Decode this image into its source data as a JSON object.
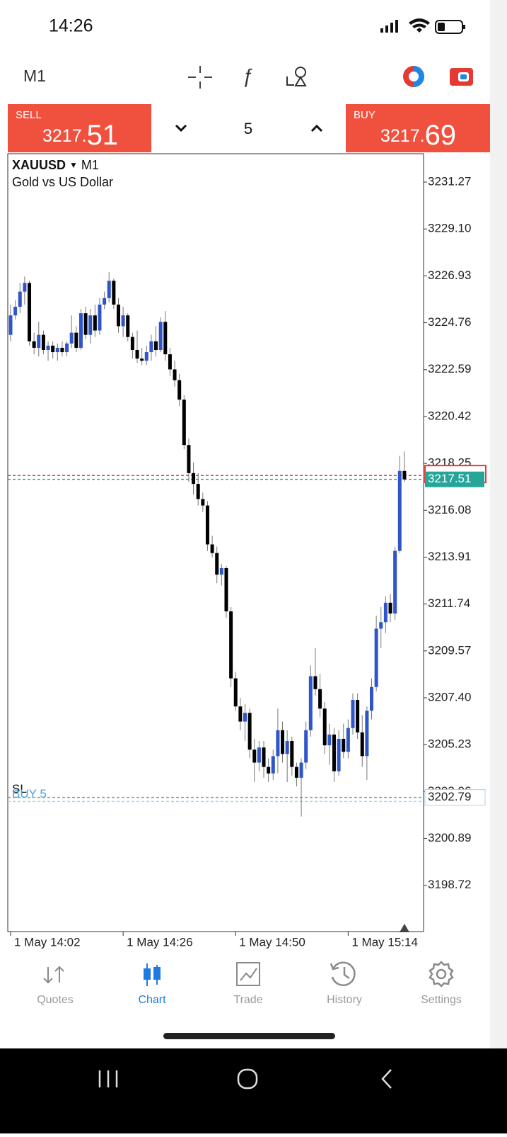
{
  "status_bar": {
    "time": "14:26"
  },
  "toolbar": {
    "timeframe": "M1"
  },
  "trade_panel": {
    "sell": {
      "label": "SELL",
      "price_main": "3217.",
      "price_pips": "51"
    },
    "volume": "5",
    "buy": {
      "label": "BUY",
      "price_main": "3217.",
      "price_pips": "69"
    }
  },
  "chart_data": {
    "type": "candlestick",
    "symbol": "XAUUSD",
    "timeframe": "M1",
    "subtitle": "Gold vs US Dollar",
    "up_color": "#2f55c8",
    "down_color": "#000000",
    "open": [
      3224.2,
      3225.1,
      3225.5,
      3226.2,
      3226.6,
      3223.9,
      3223.6,
      3224.2,
      3223.5,
      3223.7,
      3223.4,
      3223.6,
      3223.4,
      3223.8,
      3224.3,
      3223.6,
      3225.2,
      3224.2,
      3225.1,
      3224.4,
      3225.6,
      3225.9,
      3226.7,
      3225.6,
      3224.6,
      3225.1,
      3224.1,
      3223.5,
      3223.1,
      3223.0,
      3223.4,
      3223.9,
      3223.5,
      3224.8,
      3223.3,
      3222.6,
      3222.1,
      3221.2,
      3219.1,
      3217.8,
      3217.3,
      3216.6,
      3216.3,
      3214.5,
      3214.1,
      3213.1,
      3213.4,
      3211.4,
      3208.3,
      3207.0,
      3206.3,
      3206.7,
      3205.0,
      3204.4,
      3205.1,
      3204.2,
      3203.9,
      3204.7,
      3205.9,
      3204.8,
      3205.4,
      3204.2,
      3203.7,
      3204.4,
      3205.9,
      3208.4,
      3207.8,
      3206.9,
      3205.2,
      3205.7,
      3204.0,
      3205.5,
      3204.9,
      3206.0,
      3207.3,
      3205.8,
      3204.7,
      3206.8,
      3207.9,
      3210.6,
      3210.9,
      3211.8,
      3211.3,
      3214.2,
      3217.9
    ],
    "high": [
      3225.6,
      3225.8,
      3226.6,
      3226.9,
      3226.7,
      3224.3,
      3224.8,
      3224.4,
      3223.9,
      3223.9,
      3223.8,
      3223.9,
      3223.9,
      3225.1,
      3224.6,
      3225.4,
      3225.5,
      3225.4,
      3225.6,
      3225.9,
      3226.2,
      3227.1,
      3226.8,
      3225.9,
      3225.5,
      3225.2,
      3224.3,
      3224.4,
      3223.6,
      3223.7,
      3224.2,
      3224.6,
      3225.0,
      3225.3,
      3223.6,
      3223.0,
      3222.4,
      3221.4,
      3219.4,
      3218.3,
      3217.8,
      3216.9,
      3216.5,
      3214.9,
      3214.4,
      3213.6,
      3213.5,
      3211.6,
      3208.6,
      3207.4,
      3207.1,
      3206.9,
      3205.5,
      3205.4,
      3205.4,
      3204.6,
      3205.0,
      3206.9,
      3206.3,
      3205.9,
      3205.6,
      3204.4,
      3204.6,
      3206.3,
      3208.9,
      3209.7,
      3208.5,
      3207.2,
      3206.2,
      3206.0,
      3205.9,
      3206.2,
      3206.4,
      3207.6,
      3207.6,
      3206.6,
      3207.0,
      3208.3,
      3211.2,
      3211.6,
      3212.1,
      3212.2,
      3214.4,
      3218.6,
      3218.8
    ],
    "low": [
      3223.9,
      3224.9,
      3225.2,
      3225.6,
      3223.7,
      3223.3,
      3223.2,
      3223.3,
      3223.0,
      3223.1,
      3223.0,
      3223.2,
      3223.2,
      3223.6,
      3223.4,
      3223.5,
      3224.0,
      3223.8,
      3224.1,
      3224.2,
      3225.4,
      3225.7,
      3225.4,
      3224.3,
      3224.1,
      3223.9,
      3223.1,
      3222.9,
      3222.8,
      3222.8,
      3223.0,
      3223.2,
      3223.4,
      3223.0,
      3222.3,
      3221.8,
      3220.9,
      3218.9,
      3217.4,
      3216.8,
      3216.3,
      3216.0,
      3214.2,
      3213.9,
      3212.7,
      3212.6,
      3211.1,
      3207.9,
      3206.8,
      3205.9,
      3205.4,
      3204.6,
      3203.5,
      3204.0,
      3203.7,
      3203.5,
      3203.6,
      3203.9,
      3204.4,
      3203.5,
      3203.8,
      3203.3,
      3201.9,
      3204.1,
      3205.6,
      3207.5,
      3206.5,
      3204.8,
      3204.3,
      3203.5,
      3203.8,
      3204.6,
      3204.6,
      3205.7,
      3205.5,
      3204.2,
      3203.6,
      3206.4,
      3207.7,
      3209.7,
      3210.4,
      3210.9,
      3211.0,
      3214.1,
      3217.4
    ],
    "close": [
      3225.1,
      3225.5,
      3226.2,
      3226.6,
      3223.9,
      3223.6,
      3224.2,
      3223.5,
      3223.7,
      3223.4,
      3223.6,
      3223.4,
      3223.8,
      3224.3,
      3223.6,
      3225.2,
      3224.2,
      3225.1,
      3224.4,
      3225.6,
      3225.9,
      3226.7,
      3225.6,
      3224.6,
      3225.1,
      3224.1,
      3223.5,
      3223.1,
      3223.0,
      3223.4,
      3223.9,
      3223.5,
      3224.8,
      3223.3,
      3222.6,
      3222.1,
      3221.2,
      3219.1,
      3217.8,
      3217.3,
      3216.6,
      3216.3,
      3214.5,
      3214.1,
      3213.1,
      3213.4,
      3211.4,
      3208.3,
      3207.0,
      3206.3,
      3206.7,
      3205.0,
      3204.4,
      3205.1,
      3204.2,
      3203.9,
      3204.7,
      3205.9,
      3204.8,
      3205.4,
      3204.2,
      3203.7,
      3204.4,
      3205.9,
      3208.4,
      3207.8,
      3206.9,
      3205.2,
      3205.7,
      3204.0,
      3205.5,
      3204.9,
      3206.0,
      3207.3,
      3205.8,
      3204.7,
      3206.8,
      3207.9,
      3210.6,
      3210.9,
      3211.8,
      3211.3,
      3214.2,
      3217.9,
      3217.51
    ],
    "ylim": [
      3196.58,
      3232.55
    ],
    "yticks": [
      3231.27,
      {
        "value": 3229.1,
        "label": "3229.10"
      },
      3226.93,
      3224.76,
      3222.59,
      3220.42,
      3218.25,
      3216.08,
      3213.91,
      3211.74,
      3209.57,
      {
        "value": 3207.4,
        "label": "3207.40"
      },
      3205.23,
      3203.06,
      3200.89,
      3198.72
    ],
    "xticks": [
      {
        "value": 0,
        "label": "1 May 14:02"
      },
      {
        "value": 24,
        "label": "1 May 14:26"
      },
      {
        "value": 48,
        "label": "1 May 14:50"
      },
      {
        "value": 72,
        "label": "1 May 15:14"
      }
    ],
    "bid": {
      "price": 3217.51,
      "color": "#26a69a"
    },
    "ask": {
      "price": 3217.69,
      "color": "#e53935"
    },
    "position": {
      "label": "BUY 5",
      "price": 3202.79,
      "color": "#4aa3df"
    },
    "stop_loss": {
      "label": "SL",
      "price": 3202.6
    }
  },
  "bottom_nav": {
    "items": [
      "Quotes",
      "Chart",
      "Trade",
      "History",
      "Settings"
    ],
    "active": 1
  }
}
